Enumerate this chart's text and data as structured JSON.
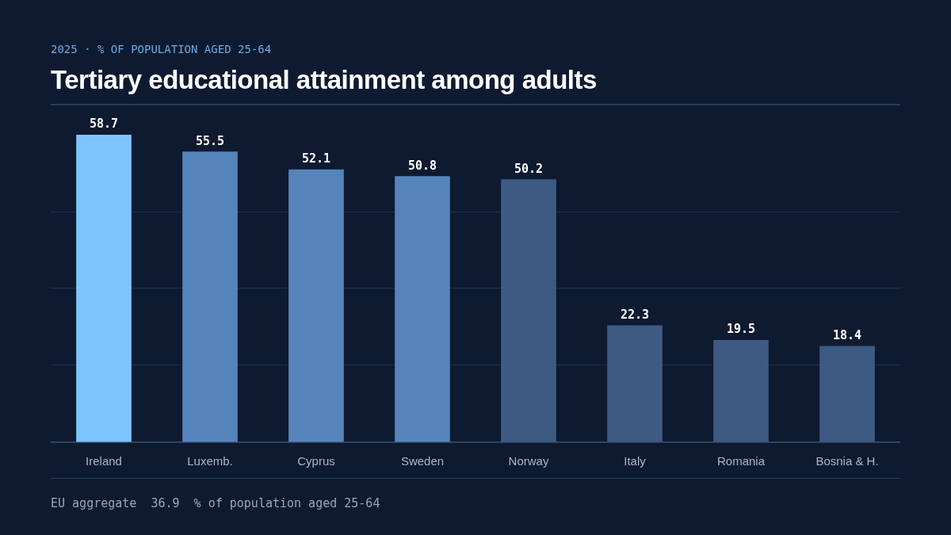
{
  "chart_data": {
    "type": "bar",
    "title": "Tertiary educational attainment among adults",
    "subtitle": "2025  ·  % OF POPULATION AGED 25-64",
    "categories": [
      "Ireland",
      "Luxemb.",
      "Cyprus",
      "Sweden",
      "Norway",
      "Italy",
      "Romania",
      "Bosnia & H."
    ],
    "values": [
      58.7,
      55.5,
      52.1,
      50.8,
      50.2,
      22.3,
      19.5,
      18.4
    ],
    "colors": [
      "#7dc4ff",
      "#5584bb",
      "#5584bb",
      "#5584bb",
      "#3d5a82",
      "#3d5a82",
      "#3d5a82",
      "#3d5a82"
    ],
    "ylim": [
      0,
      58.7
    ],
    "yticks": [
      {
        "value": 0,
        "label": null
      },
      {
        "value": 14.7,
        "label": null
      },
      {
        "value": 29.4,
        "label": null
      },
      {
        "value": 44,
        "label": null
      }
    ],
    "grid": "y",
    "data_labels": true,
    "tick_labels": "x",
    "legend": false,
    "annotations": [
      "EU aggregate  36.9  % of population aged 25-64"
    ]
  }
}
